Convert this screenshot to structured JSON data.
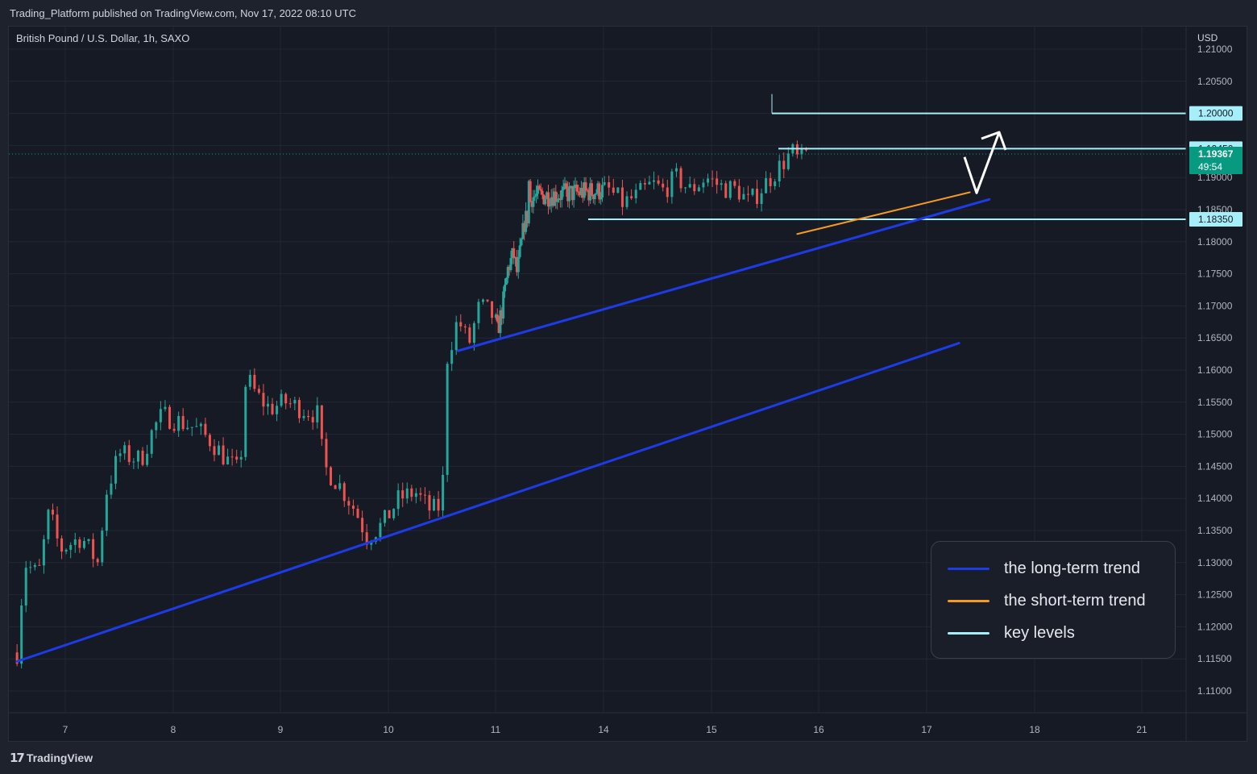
{
  "header": {
    "publish_info": "Trading_Platform published on TradingView.com, Nov 17, 2022 08:10 UTC"
  },
  "footer": {
    "brand_logo": "17",
    "brand_name": "TradingView"
  },
  "colors": {
    "up": "#26a69a",
    "down": "#ef5350",
    "long_trend": "#1e3be8",
    "short_trend": "#f59b22",
    "key_level": "#a6eef8",
    "price_badge": "#089981"
  },
  "legend": {
    "items": [
      {
        "label": "the long-term trend",
        "color": "#1e3be8"
      },
      {
        "label": "the short-term trend",
        "color": "#f59b22"
      },
      {
        "label": "key levels",
        "color": "#a6eef8"
      }
    ]
  },
  "chart_data": {
    "type": "candlestick",
    "title": "British Pound / U.S. Dollar, 1h, SAXO",
    "currency": "USD",
    "x_ticks": [
      "7",
      "8",
      "9",
      "10",
      "11",
      "14",
      "15",
      "16",
      "17",
      "18",
      "21"
    ],
    "y_ticks": [
      "1.21000",
      "1.20500",
      "1.20000",
      "1.19500",
      "1.19000",
      "1.18500",
      "1.18000",
      "1.17500",
      "1.17000",
      "1.16500",
      "1.16000",
      "1.15500",
      "1.15000",
      "1.14500",
      "1.14000",
      "1.13500",
      "1.13000",
      "1.12500",
      "1.12000",
      "1.11500",
      "1.11000"
    ],
    "ylim": [
      1.1085,
      1.211
    ],
    "grid": true,
    "key_levels": [
      1.2,
      1.1945,
      1.1835
    ],
    "last_price": "1.19367",
    "countdown": "49:54",
    "trendlines": [
      {
        "series": "long-term",
        "points": [
          [
            "Nov 4 day 6.55",
            1.1146
          ],
          [
            "Nov 17 day 17.30",
            1.1642
          ]
        ]
      },
      {
        "series": "long-term",
        "points": [
          [
            "Nov 10 day 10.65",
            1.163
          ],
          [
            "Nov 17 day 17.58",
            1.1866
          ]
        ]
      },
      {
        "series": "short-term",
        "points": [
          [
            "Nov 15 day 15.80",
            1.1812
          ],
          [
            "Nov 17 day 17.40",
            1.1877
          ]
        ]
      }
    ],
    "projection_arrow": {
      "from": 1.1947,
      "dip": 1.1876,
      "to": 1.1953
    },
    "candle_path": [
      [
        6.55,
        1.116
      ],
      [
        6.62,
        1.13
      ],
      [
        6.75,
        1.128
      ],
      [
        6.85,
        1.138
      ],
      [
        6.95,
        1.132
      ],
      [
        7.15,
        1.134
      ],
      [
        7.3,
        1.13
      ],
      [
        7.38,
        1.141
      ],
      [
        7.5,
        1.147
      ],
      [
        7.7,
        1.146
      ],
      [
        7.82,
        1.151
      ],
      [
        7.9,
        1.153
      ],
      [
        8.05,
        1.152
      ],
      [
        8.2,
        1.151
      ],
      [
        8.35,
        1.149
      ],
      [
        8.5,
        1.146
      ],
      [
        8.62,
        1.144
      ],
      [
        8.68,
        1.159
      ],
      [
        8.78,
        1.156
      ],
      [
        8.9,
        1.154
      ],
      [
        9.05,
        1.155
      ],
      [
        9.2,
        1.154
      ],
      [
        9.35,
        1.153
      ],
      [
        9.4,
        1.145
      ],
      [
        9.55,
        1.142
      ],
      [
        9.7,
        1.138
      ],
      [
        9.8,
        1.134
      ],
      [
        9.95,
        1.136
      ],
      [
        10.1,
        1.14
      ],
      [
        10.25,
        1.141
      ],
      [
        10.4,
        1.138
      ],
      [
        10.5,
        1.139
      ],
      [
        10.55,
        1.162
      ],
      [
        10.65,
        1.168
      ],
      [
        10.75,
        1.164
      ],
      [
        10.85,
        1.17
      ],
      [
        10.95,
        1.169
      ],
      [
        11.05,
        1.166
      ],
      [
        11.2,
        1.17
      ],
      [
        11.35,
        1.176
      ],
      [
        11.5,
        1.178
      ],
      [
        11.6,
        1.175
      ],
      [
        11.7,
        1.179
      ],
      [
        11.8,
        1.183
      ],
      [
        11.88,
        1.184
      ],
      [
        11.92,
        1.183
      ],
      [
        12.05,
        1.18
      ],
      [
        12.2,
        1.179
      ],
      [
        12.3,
        1.176
      ],
      [
        12.42,
        1.181
      ],
      [
        12.52,
        1.177
      ],
      [
        12.6,
        1.177
      ],
      [
        12.7,
        1.174
      ],
      [
        12.8,
        1.175
      ],
      [
        12.9,
        1.178
      ],
      [
        13.0,
        1.177
      ],
      [
        13.1,
        1.175
      ],
      [
        13.2,
        1.176
      ],
      [
        13.28,
        1.178
      ],
      [
        13.38,
        1.179
      ],
      [
        13.45,
        1.183
      ],
      [
        13.55,
        1.1845
      ],
      [
        13.6,
        1.19
      ],
      [
        13.67,
        1.1945
      ],
      [
        13.72,
        1.192
      ],
      [
        13.8,
        1.188
      ],
      [
        13.88,
        1.186
      ],
      [
        13.95,
        1.187
      ],
      [
        14.05,
        1.188
      ],
      [
        14.18,
        1.186
      ],
      [
        14.3,
        1.187
      ],
      [
        14.45,
        1.189
      ],
      [
        14.55,
        1.188
      ],
      [
        14.68,
        1.19
      ],
      [
        14.8,
        1.188
      ],
      [
        14.95,
        1.19
      ],
      [
        15.1,
        1.1885
      ],
      [
        15.25,
        1.188
      ],
      [
        15.35,
        1.186
      ],
      [
        15.45,
        1.188
      ],
      [
        15.55,
        1.19
      ],
      [
        15.65,
        1.192
      ],
      [
        15.75,
        1.194
      ],
      [
        15.82,
        1.1925
      ],
      [
        15.9,
        1.194
      ]
    ]
  }
}
